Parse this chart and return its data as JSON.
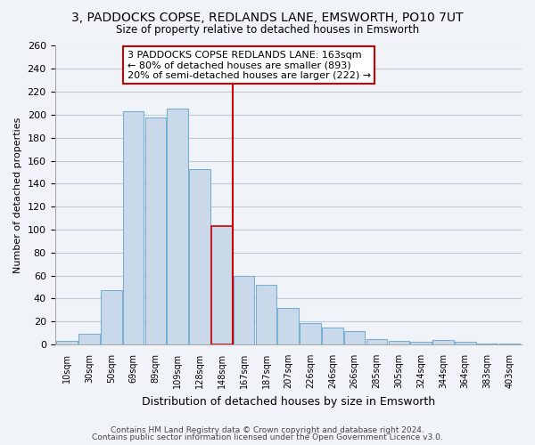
{
  "title": "3, PADDOCKS COPSE, REDLANDS LANE, EMSWORTH, PO10 7UT",
  "subtitle": "Size of property relative to detached houses in Emsworth",
  "xlabel": "Distribution of detached houses by size in Emsworth",
  "ylabel": "Number of detached properties",
  "bar_labels": [
    "10sqm",
    "30sqm",
    "50sqm",
    "69sqm",
    "89sqm",
    "109sqm",
    "128sqm",
    "148sqm",
    "167sqm",
    "187sqm",
    "207sqm",
    "226sqm",
    "246sqm",
    "266sqm",
    "285sqm",
    "305sqm",
    "324sqm",
    "344sqm",
    "364sqm",
    "383sqm",
    "403sqm"
  ],
  "bar_values": [
    3,
    9,
    47,
    203,
    198,
    205,
    153,
    103,
    60,
    52,
    32,
    19,
    15,
    12,
    5,
    3,
    2,
    4,
    2,
    1,
    1
  ],
  "bar_color": "#c9d9ea",
  "bar_edge_color": "#7aafd4",
  "highlight_index": 7,
  "highlight_edge_color": "#cc0000",
  "vline_x": 7.5,
  "vline_color": "#cc0000",
  "ylim": [
    0,
    260
  ],
  "yticks": [
    0,
    20,
    40,
    60,
    80,
    100,
    120,
    140,
    160,
    180,
    200,
    220,
    240,
    260
  ],
  "annotation_line1": "3 PADDOCKS COPSE REDLANDS LANE: 163sqm",
  "annotation_line2": "← 80% of detached houses are smaller (893)",
  "annotation_line3": "20% of semi-detached houses are larger (222) →",
  "footer_line1": "Contains HM Land Registry data © Crown copyright and database right 2024.",
  "footer_line2": "Contains public sector information licensed under the Open Government Licence v3.0.",
  "background_color": "#f0f4f8",
  "plot_bg_color": "#f0f4f8",
  "grid_color": "#c0ccd8"
}
